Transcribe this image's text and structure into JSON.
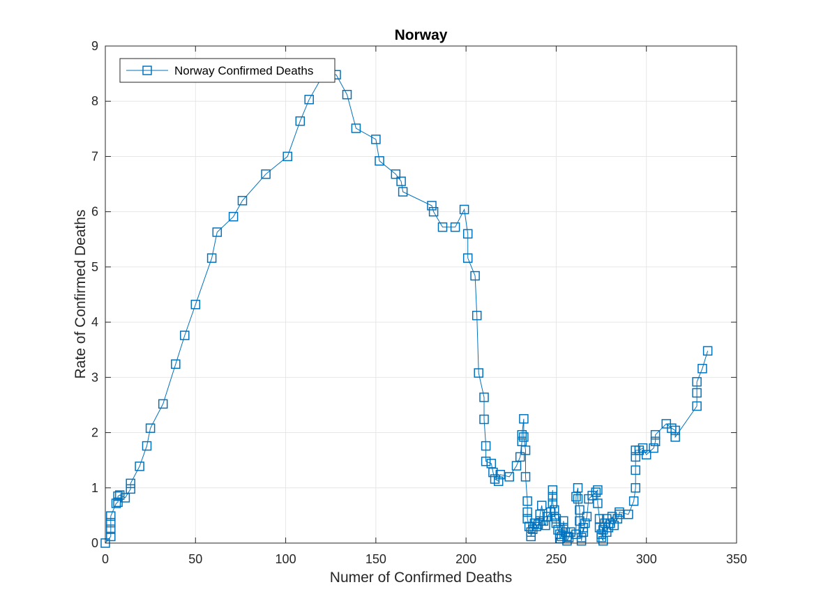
{
  "chart_data": {
    "type": "line",
    "title": "Norway",
    "xlabel": "Numer of Confirmed Deaths",
    "ylabel": "Rate of Confirmed Deaths",
    "xlim": [
      0,
      350
    ],
    "ylim": [
      0,
      9
    ],
    "xticks": [
      0,
      50,
      100,
      150,
      200,
      250,
      300,
      350
    ],
    "yticks": [
      0,
      1,
      2,
      3,
      4,
      5,
      6,
      7,
      8,
      9
    ],
    "grid": true,
    "legend_position": "top-left",
    "marker": "square",
    "series": [
      {
        "name": "Norway Confirmed Deaths",
        "color": "#0072BD",
        "x": [
          0,
          3,
          3,
          3,
          3,
          6,
          7,
          7,
          8,
          11,
          14,
          14,
          19,
          23,
          25,
          32,
          39,
          44,
          50,
          59,
          62,
          71,
          76,
          89,
          101,
          108,
          113,
          121,
          128,
          134,
          139,
          150,
          152,
          161,
          164,
          165,
          181,
          182,
          187,
          194,
          199,
          201,
          201,
          205,
          206,
          207,
          210,
          210,
          211,
          211,
          214,
          215,
          216,
          218,
          219,
          224,
          228,
          230,
          231,
          231,
          232,
          232,
          233,
          233,
          234,
          234,
          234,
          235,
          236,
          236,
          237,
          238,
          239,
          240,
          241,
          241,
          242,
          243,
          244,
          245,
          247,
          248,
          248,
          248,
          249,
          249,
          250,
          250,
          251,
          252,
          252,
          253,
          254,
          254,
          255,
          256,
          256,
          257,
          258,
          261,
          261,
          262,
          262,
          263,
          263,
          264,
          264,
          265,
          265,
          266,
          267,
          268,
          270,
          272,
          273,
          273,
          274,
          274,
          275,
          275,
          276,
          276,
          277,
          278,
          278,
          279,
          280,
          281,
          282,
          284,
          285,
          285,
          290,
          293,
          294,
          294,
          294,
          294,
          296,
          298,
          300,
          304,
          305,
          305,
          311,
          314,
          316,
          316,
          328,
          328,
          328,
          331,
          334
        ],
        "y": [
          0.0,
          0.12,
          0.25,
          0.37,
          0.49,
          0.72,
          0.74,
          0.85,
          0.87,
          0.82,
          0.98,
          1.08,
          1.39,
          1.76,
          2.08,
          2.52,
          3.24,
          3.76,
          4.32,
          5.16,
          5.63,
          5.91,
          6.2,
          6.68,
          7.0,
          7.64,
          8.03,
          8.49,
          8.48,
          8.12,
          7.51,
          7.31,
          6.92,
          6.68,
          6.55,
          6.36,
          6.11,
          6.0,
          5.72,
          5.72,
          6.04,
          5.6,
          5.16,
          4.84,
          4.12,
          3.08,
          2.64,
          2.24,
          1.76,
          1.48,
          1.44,
          1.28,
          1.16,
          1.12,
          1.24,
          1.2,
          1.4,
          1.56,
          1.84,
          1.96,
          2.25,
          1.92,
          1.68,
          1.2,
          0.76,
          0.56,
          0.44,
          0.3,
          0.2,
          0.12,
          0.25,
          0.36,
          0.3,
          0.34,
          0.4,
          0.52,
          0.68,
          0.4,
          0.32,
          0.48,
          0.56,
          0.96,
          0.84,
          0.72,
          0.6,
          0.48,
          0.44,
          0.36,
          0.24,
          0.16,
          0.08,
          0.12,
          0.28,
          0.4,
          0.2,
          0.12,
          0.04,
          0.1,
          0.2,
          0.16,
          0.84,
          1.0,
          0.8,
          0.6,
          0.4,
          0.1,
          0.04,
          0.28,
          0.2,
          0.36,
          0.48,
          0.8,
          0.86,
          0.92,
          0.96,
          0.72,
          0.44,
          0.28,
          0.16,
          0.1,
          0.04,
          0.24,
          0.36,
          0.44,
          0.2,
          0.28,
          0.36,
          0.48,
          0.32,
          0.44,
          0.52,
          0.56,
          0.52,
          0.76,
          1.0,
          1.32,
          1.56,
          1.68,
          1.68,
          1.72,
          1.6,
          1.72,
          1.84,
          1.96,
          2.16,
          2.08,
          2.04,
          1.92,
          2.48,
          2.72,
          2.92,
          3.16,
          3.48
        ]
      }
    ]
  }
}
